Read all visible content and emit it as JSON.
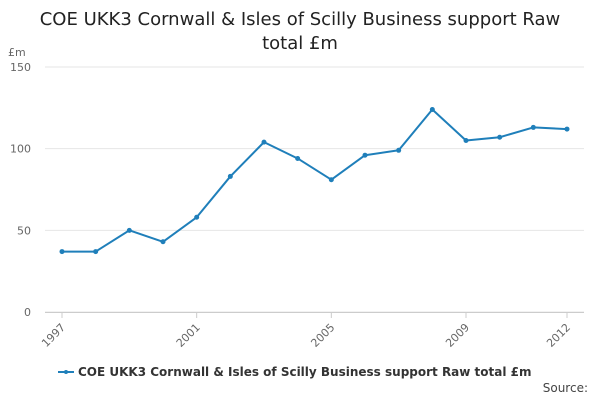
{
  "chart_data": {
    "type": "line",
    "title": "COE UKK3 Cornwall & Isles of Scilly Business support Raw total £m",
    "title_lines": [
      "COE UKK3 Cornwall & Isles of Scilly Business support Raw",
      "total £m"
    ],
    "ylabel": "£m",
    "ylim": [
      0,
      150
    ],
    "yticks": [
      0,
      50,
      100,
      150
    ],
    "x": [
      1997,
      1998,
      1999,
      2000,
      2001,
      2002,
      2003,
      2004,
      2005,
      2006,
      2007,
      2008,
      2009,
      2010,
      2011,
      2012
    ],
    "xticks": [
      "1997",
      "2001",
      "2005",
      "2009",
      "2012"
    ],
    "grid": true,
    "legend_position": "bottom",
    "series": [
      {
        "name": "COE UKK3 Cornwall & Isles of Scilly Business support Raw total £m",
        "color": "#1f7fba",
        "values": [
          37,
          37,
          50,
          43,
          58,
          83,
          104,
          94,
          81,
          96,
          99,
          124,
          105,
          107,
          113,
          112
        ]
      }
    ]
  },
  "credits": "Source:"
}
